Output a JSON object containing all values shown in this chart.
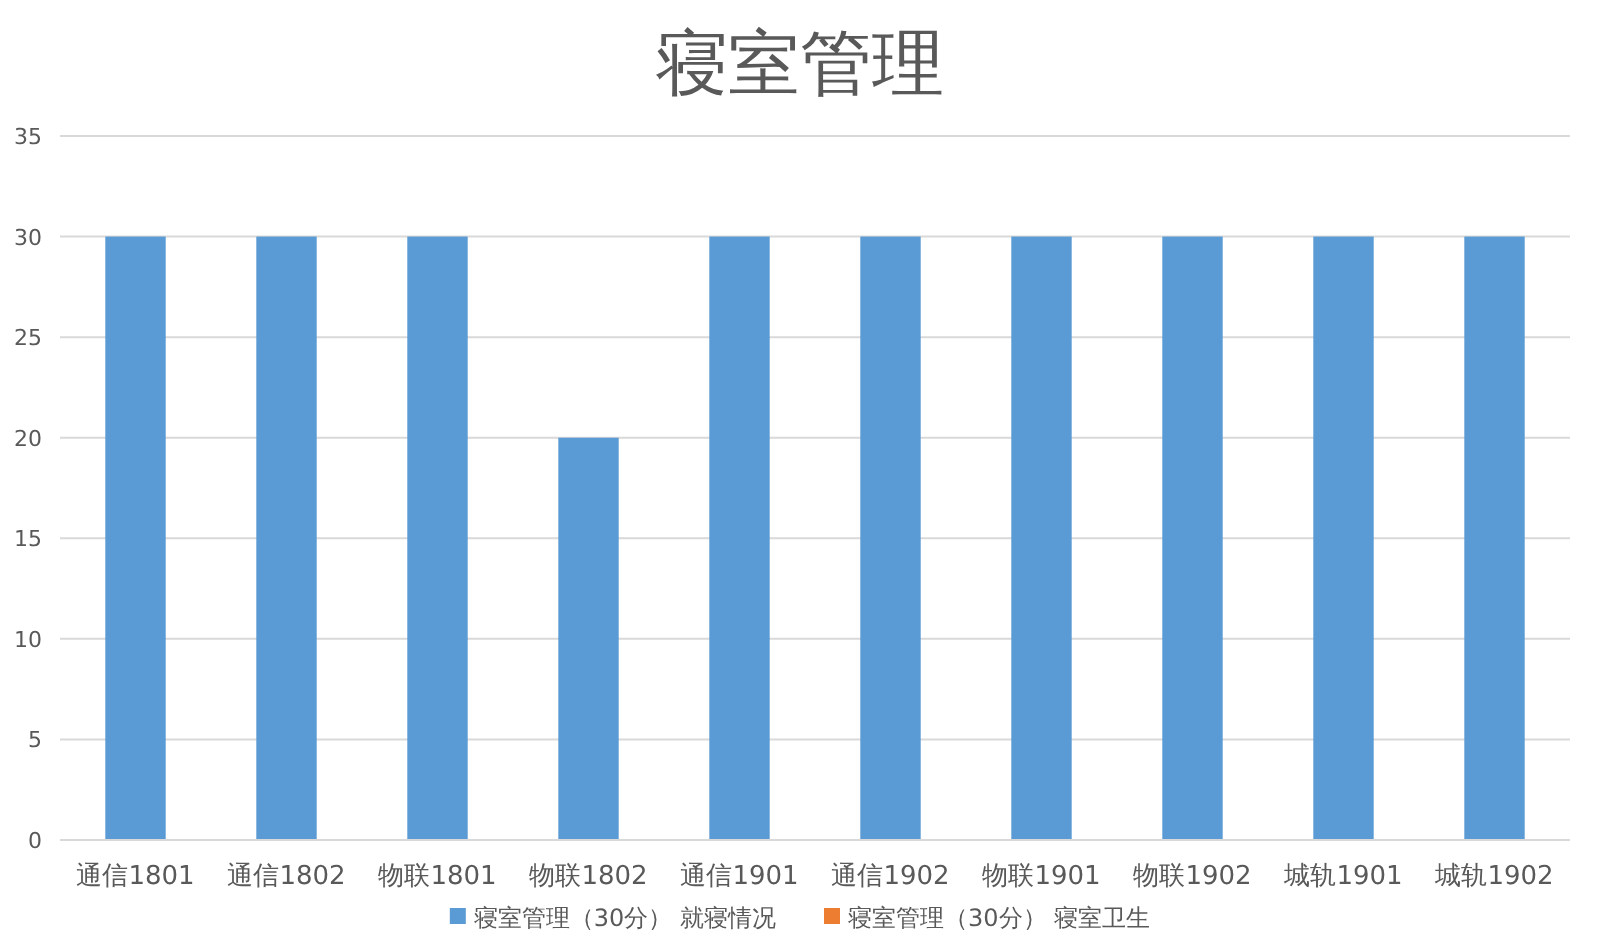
{
  "chart_data": {
    "type": "bar",
    "title": "寝室管理",
    "categories": [
      "通信1801",
      "通信1802",
      "物联1801",
      "物联1802",
      "通信1901",
      "通信1902",
      "物联1901",
      "物联1902",
      "城轨1901",
      "城轨1902"
    ],
    "series": [
      {
        "name": "寝室管理（30分） 就寝情况",
        "color": "#5b9bd5",
        "values": [
          30,
          30,
          30,
          20,
          30,
          30,
          30,
          30,
          30,
          30
        ]
      },
      {
        "name": "寝室管理（30分） 寝室卫生",
        "color": "#ed7d31",
        "values": [
          null,
          null,
          null,
          null,
          null,
          null,
          null,
          null,
          null,
          null
        ]
      }
    ],
    "ylim": [
      0,
      35
    ],
    "yticks": [
      0,
      5,
      10,
      15,
      20,
      25,
      30,
      35
    ],
    "grid": "y",
    "legend": "bottom"
  }
}
